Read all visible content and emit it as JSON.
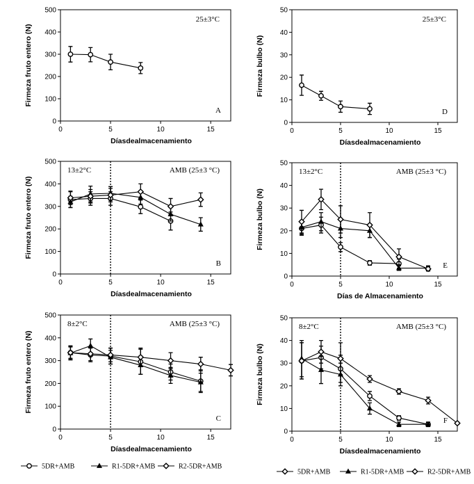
{
  "chart_data": [
    {
      "id": "A",
      "type": "line",
      "ylabel": "Firmeza fruto entero (N)",
      "xlabel": "Díasdealmacenamiento",
      "ylim": [
        0,
        500
      ],
      "yticks": [
        0,
        100,
        200,
        300,
        400,
        500
      ],
      "xlim": [
        0,
        17
      ],
      "xticks": [
        0,
        5,
        10,
        15
      ],
      "corner_label": "A",
      "temp_label": "25±3°C",
      "region_label": "",
      "divider_x": null,
      "series": [
        {
          "marker": "circle",
          "x": [
            1,
            3,
            5,
            8
          ],
          "y": [
            300,
            298,
            265,
            238
          ],
          "err": [
            35,
            32,
            35,
            25
          ]
        }
      ]
    },
    {
      "id": "D",
      "type": "line",
      "ylabel": "Firmeza bulbo (N)",
      "xlabel": "Díasdealmacenamiento",
      "ylim": [
        0,
        50
      ],
      "yticks": [
        0,
        10,
        20,
        30,
        40,
        50
      ],
      "xlim": [
        0,
        17
      ],
      "xticks": [
        0,
        5,
        10,
        15
      ],
      "corner_label": "D",
      "temp_label": "25±3°C",
      "region_label": "",
      "divider_x": null,
      "series": [
        {
          "marker": "circle",
          "x": [
            1,
            3,
            5,
            8
          ],
          "y": [
            16.5,
            11.8,
            7,
            6
          ],
          "err": [
            4.5,
            2,
            2.5,
            2.5
          ]
        }
      ]
    },
    {
      "id": "B",
      "type": "line",
      "ylabel": "Firmeza fruto entero (N)",
      "xlabel": "Díasdealmacenamiento",
      "ylim": [
        0,
        500
      ],
      "yticks": [
        0,
        100,
        200,
        300,
        400,
        500
      ],
      "xlim": [
        0,
        17
      ],
      "xticks": [
        0,
        5,
        10,
        15
      ],
      "corner_label": "B",
      "temp_label": "13±2°C",
      "region_label": "AMB (25±3 °C)",
      "divider_x": 5,
      "series": [
        {
          "marker": "circle",
          "x": [
            1,
            3,
            5,
            8,
            11
          ],
          "y": [
            330,
            335,
            335,
            298,
            235
          ],
          "err": [
            35,
            30,
            30,
            30,
            40
          ]
        },
        {
          "marker": "triangle",
          "x": [
            1,
            3,
            5,
            8,
            11,
            14
          ],
          "y": [
            320,
            355,
            358,
            340,
            265,
            220
          ],
          "err": [
            25,
            35,
            30,
            30,
            30,
            30
          ]
        },
        {
          "marker": "diamond",
          "x": [
            1,
            3,
            5,
            8,
            11,
            14
          ],
          "y": [
            338,
            345,
            350,
            365,
            300,
            330
          ],
          "err": [
            30,
            30,
            30,
            35,
            35,
            30
          ]
        }
      ]
    },
    {
      "id": "E",
      "type": "line",
      "ylabel": "Firmeza bulbo (N)",
      "xlabel": "Días de Almacenamiento",
      "ylim": [
        0,
        50
      ],
      "yticks": [
        0,
        10,
        20,
        30,
        40,
        50
      ],
      "xlim": [
        0,
        17
      ],
      "xticks": [
        0,
        5,
        10,
        15
      ],
      "corner_label": "E",
      "temp_label": "13±2°C",
      "region_label": "AMB (25±3 °C)",
      "divider_x": 5,
      "series": [
        {
          "marker": "circle",
          "x": [
            1,
            3,
            5,
            8,
            11
          ],
          "y": [
            21,
            22.5,
            12.8,
            5.8,
            5.5
          ],
          "err": [
            3,
            3.5,
            2,
            1,
            2
          ]
        },
        {
          "marker": "triangle",
          "x": [
            1,
            3,
            5,
            8,
            11,
            14
          ],
          "y": [
            21.5,
            24,
            21,
            20,
            3.5,
            3.5
          ],
          "err": [
            3,
            4,
            4,
            3,
            1,
            1
          ]
        },
        {
          "marker": "diamond",
          "x": [
            1,
            3,
            5,
            8,
            11,
            14
          ],
          "y": [
            24,
            33.8,
            25,
            22.5,
            8.5,
            3.2
          ],
          "err": [
            5,
            4.5,
            6,
            5.5,
            3.5,
            1
          ]
        }
      ]
    },
    {
      "id": "C",
      "type": "line",
      "ylabel": "Firmeza fruto entero (N)",
      "xlabel": "Díasdealmacenamiento",
      "ylim": [
        0,
        500
      ],
      "yticks": [
        0,
        100,
        200,
        300,
        400,
        500
      ],
      "xlim": [
        0,
        17
      ],
      "xticks": [
        0,
        5,
        10,
        15
      ],
      "corner_label": "C",
      "temp_label": "8±2°C",
      "region_label": "AMB (25±3 °C)",
      "divider_x": 5,
      "series": [
        {
          "marker": "circle",
          "x": [
            1,
            3,
            5,
            8,
            11,
            14
          ],
          "y": [
            335,
            325,
            320,
            295,
            250,
            210
          ],
          "err": [
            30,
            30,
            35,
            55,
            35,
            50
          ]
        },
        {
          "marker": "triangle",
          "x": [
            1,
            3,
            5,
            8,
            11,
            14
          ],
          "y": [
            333,
            365,
            315,
            280,
            235,
            205
          ],
          "err": [
            30,
            30,
            30,
            40,
            35,
            40
          ]
        },
        {
          "marker": "diamond",
          "x": [
            1,
            3,
            5,
            8,
            11,
            14,
            17
          ],
          "y": [
            335,
            330,
            325,
            315,
            300,
            285,
            258
          ],
          "err": [
            25,
            30,
            30,
            40,
            35,
            30,
            25
          ]
        }
      ]
    },
    {
      "id": "F",
      "type": "line",
      "ylabel": "Firmeza bulbo (N)",
      "xlabel": "Díasdealmacenamiento",
      "ylim": [
        0,
        50
      ],
      "yticks": [
        0,
        10,
        20,
        30,
        40,
        50
      ],
      "xlim": [
        0,
        17
      ],
      "xticks": [
        0,
        5,
        10,
        15
      ],
      "corner_label": "F",
      "temp_label": "8±2°C",
      "region_label": "AMB (25±3 °C)",
      "divider_x": 5,
      "series": [
        {
          "marker": "circle",
          "x": [
            1,
            3,
            5,
            8,
            11,
            14
          ],
          "y": [
            31,
            32.5,
            27.5,
            15.5,
            5.8,
            3
          ],
          "err": [
            8,
            5,
            6,
            2,
            1,
            0.8
          ]
        },
        {
          "marker": "triangle",
          "x": [
            1,
            3,
            5,
            8,
            11,
            14
          ],
          "y": [
            32,
            27,
            25,
            10,
            3,
            3
          ],
          "err": [
            8,
            6,
            5,
            2.5,
            1,
            1
          ]
        },
        {
          "marker": "diamond",
          "x": [
            1,
            3,
            5,
            8,
            11,
            14,
            17
          ],
          "y": [
            31,
            35,
            32,
            23,
            17.5,
            13.5,
            3.5
          ],
          "err": [
            8,
            5,
            7,
            1.5,
            1.2,
            1.5,
            0.5
          ]
        }
      ]
    }
  ],
  "legends": [
    {
      "items": [
        {
          "marker": "circle",
          "label": "5DR+AMB"
        },
        {
          "marker": "triangle",
          "label": "R1-5DR+AMB"
        },
        {
          "marker": "diamond",
          "label": "R2-5DR+AMB"
        }
      ]
    },
    {
      "items": [
        {
          "marker": "diamond",
          "label": "5DR+AMB"
        },
        {
          "marker": "triangle",
          "label": "R1-5DR+AMB"
        },
        {
          "marker": "diamond",
          "label": "R2-5DR+AMB"
        }
      ]
    }
  ],
  "colors": {
    "ink": "#000000",
    "marker_fill": "#ffffff",
    "background": "#ffffff"
  }
}
